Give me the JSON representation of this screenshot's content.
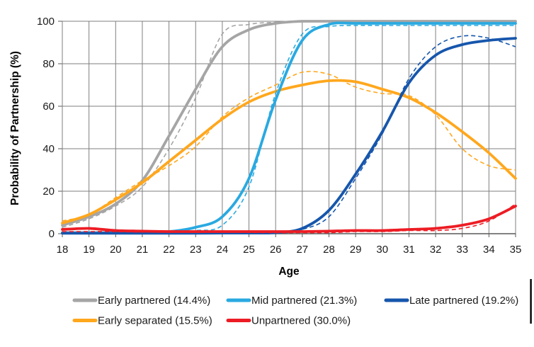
{
  "chart_data": {
    "type": "line",
    "title": "",
    "xlabel": "Age",
    "ylabel": "Probability of Partnership (%)",
    "x": [
      18,
      19,
      20,
      21,
      22,
      23,
      24,
      25,
      26,
      27,
      28,
      29,
      30,
      31,
      32,
      33,
      34,
      35
    ],
    "xlim": [
      18,
      35
    ],
    "ylim": [
      0,
      100
    ],
    "yticks": [
      0,
      20,
      40,
      60,
      80,
      100
    ],
    "grid": true,
    "legend_position": "bottom",
    "line_styles": [
      "solid (smoothed model)",
      "dashed (observed)"
    ],
    "series": [
      {
        "name": "Early partnered (14.4%)",
        "color": "#A5A5A5",
        "solid": [
          4,
          8,
          14,
          25,
          46,
          68,
          88,
          96,
          99,
          100,
          100,
          100,
          100,
          100,
          100,
          100,
          100,
          100
        ],
        "dashed": [
          3,
          7,
          13,
          22,
          40,
          64,
          94,
          98.5,
          99.5,
          100,
          100,
          100,
          100,
          100,
          100,
          100,
          100,
          100
        ]
      },
      {
        "name": "Early separated (15.5%)",
        "color": "#FFA71D",
        "solid": [
          5,
          9,
          16,
          24,
          34,
          44,
          54,
          62,
          67,
          70,
          72,
          71.5,
          68,
          64,
          57,
          48,
          38,
          26
        ],
        "dashed": [
          6,
          9,
          17,
          25,
          32,
          41,
          55,
          64,
          70,
          76,
          75,
          69,
          66,
          65,
          56,
          40,
          32,
          30
        ]
      },
      {
        "name": "Mid partnered (21.3%)",
        "color": "#29A9E1",
        "solid": [
          0.5,
          0.5,
          0.5,
          0.5,
          1,
          3,
          8,
          26,
          63,
          91,
          98.5,
          99,
          99,
          99,
          99,
          99,
          99,
          99
        ],
        "dashed": [
          0.5,
          0.5,
          0.5,
          0.5,
          0.5,
          1.5,
          4,
          22,
          66,
          94,
          97.5,
          98,
          98,
          98,
          98,
          98,
          98,
          98
        ]
      },
      {
        "name": "Late partnered (19.2%)",
        "color": "#1656AC",
        "solid": [
          0.2,
          0.2,
          0.2,
          0.2,
          0.2,
          0.2,
          0.3,
          0.3,
          0.5,
          2.5,
          11,
          28,
          48,
          71,
          84,
          89,
          91,
          92
        ],
        "dashed": [
          0.2,
          0.2,
          0.2,
          0.2,
          0.2,
          0.2,
          0.3,
          0.3,
          0.5,
          2,
          8,
          26,
          47,
          73,
          88,
          93,
          92,
          88
        ]
      },
      {
        "name": "Unpartnered (30.0%)",
        "color": "#ED1C24",
        "solid": [
          2,
          2.5,
          1.5,
          1.2,
          1,
          1,
          1,
          1,
          1,
          1,
          1.2,
          1.5,
          1.5,
          2,
          2.5,
          4,
          7,
          13
        ],
        "dashed": [
          1,
          1,
          1,
          0.8,
          1.2,
          0.6,
          1,
          0.6,
          0.5,
          0.5,
          0.5,
          1,
          1,
          1.5,
          1.5,
          2.5,
          6,
          14
        ]
      }
    ],
    "legend_rows": [
      [
        0,
        2,
        3
      ],
      [
        1,
        4
      ]
    ]
  }
}
